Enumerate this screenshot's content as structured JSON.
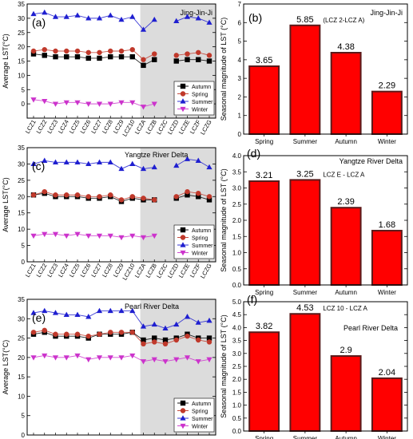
{
  "chart_data": [
    {
      "id": "a",
      "type": "line",
      "panel_label": "(a)",
      "region": "Jing-Jin-Ji",
      "ylabel": "Average LST(°C)",
      "ylim": [
        -5,
        35
      ],
      "yticks": [
        0,
        5,
        10,
        15,
        20,
        25,
        30,
        35
      ],
      "x_tick_labels": [
        "LCZ1",
        "LCZ2",
        "LCZ3",
        "LCZ4",
        "LCZ5",
        "LCZ6",
        "LCZ7",
        "LCZ8",
        "LCZ9",
        "LCZ10",
        "LCZA",
        "LCZB",
        "LCZC",
        "LCZD",
        "LCZE",
        "LCZF",
        "LCZG"
      ],
      "shaded_from_category": "LCZA",
      "legend_position": "lower-right",
      "series": [
        {
          "name": "Autumn",
          "color": "#000000",
          "marker": "square",
          "values": [
            17.5,
            17.0,
            16.5,
            16.5,
            16.5,
            16.0,
            16.0,
            16.5,
            16.5,
            16.5,
            13.5,
            15.5,
            null,
            15.0,
            15.5,
            15.5,
            15.0
          ]
        },
        {
          "name": "Spring",
          "color": "#c0392b",
          "marker": "circle",
          "values": [
            18.5,
            19.0,
            18.5,
            18.5,
            18.5,
            18.0,
            18.0,
            18.5,
            18.5,
            19.0,
            15.5,
            17.5,
            null,
            17.0,
            17.5,
            18.0,
            17.0
          ]
        },
        {
          "name": "Summer",
          "color": "#1f1fd0",
          "marker": "triangle-up",
          "values": [
            31.5,
            32.0,
            30.5,
            30.5,
            31.0,
            30.0,
            30.0,
            31.0,
            29.5,
            30.5,
            26.0,
            29.5,
            null,
            29.0,
            30.5,
            30.0,
            28.5
          ]
        },
        {
          "name": "Winter",
          "color": "#cc33cc",
          "marker": "triangle-down",
          "values": [
            1.5,
            1.0,
            0.0,
            0.5,
            0.5,
            0.0,
            0.0,
            0.0,
            0.5,
            0.5,
            -1.0,
            0.0,
            null,
            -0.5,
            -0.5,
            -0.5,
            0.0
          ]
        }
      ]
    },
    {
      "id": "b",
      "type": "bar",
      "panel_label": "(b)",
      "region": "Jing-Jin-Ji",
      "ylabel": "Seasonal magnitude of LST (°C)",
      "ylim": [
        0,
        7
      ],
      "yticks": [
        0,
        1,
        2,
        3,
        4,
        5,
        6,
        7
      ],
      "categories": [
        "Spring",
        "Summer",
        "Autumn",
        "Winter"
      ],
      "values": [
        3.65,
        5.85,
        4.38,
        2.29
      ],
      "value_labels": [
        "3.65",
        "5.85",
        "4.38",
        "2.29"
      ],
      "annotation": "(LCZ 2-LCZ A)",
      "annotation_bar": "Summer"
    },
    {
      "id": "c",
      "type": "line",
      "panel_label": "(c)",
      "region": "Yangtze River Delta",
      "ylabel": "Average LST(°C)",
      "ylim": [
        0,
        35
      ],
      "yticks": [
        0,
        5,
        10,
        15,
        20,
        25,
        30,
        35
      ],
      "x_tick_labels": [
        "LCZ1",
        "LCZ2",
        "LCZ3",
        "LCZ4",
        "LCZ5",
        "LCZ6",
        "LCZ7",
        "LCZ8",
        "LCZ9",
        "LCZ10",
        "LCZA",
        "LCZB",
        "LCZC",
        "LCZD",
        "LCZE",
        "LCZF",
        "LCZG"
      ],
      "shaded_from_category": "LCZA",
      "legend_position": "lower-right",
      "series": [
        {
          "name": "Autumn",
          "color": "#000000",
          "marker": "square",
          "values": [
            20.5,
            21.0,
            20.0,
            20.0,
            20.0,
            19.5,
            19.5,
            20.0,
            18.5,
            19.5,
            19.0,
            19.0,
            null,
            19.5,
            20.5,
            20.0,
            19.0
          ]
        },
        {
          "name": "Spring",
          "color": "#c0392b",
          "marker": "circle",
          "values": [
            20.5,
            21.5,
            20.5,
            20.5,
            20.5,
            20.0,
            20.0,
            20.5,
            19.0,
            20.0,
            19.5,
            19.0,
            null,
            20.0,
            21.5,
            21.0,
            20.0
          ]
        },
        {
          "name": "Summer",
          "color": "#1f1fd0",
          "marker": "triangle-up",
          "values": [
            30.0,
            31.0,
            30.5,
            30.5,
            30.5,
            30.0,
            30.5,
            30.5,
            28.5,
            30.0,
            28.5,
            29.0,
            null,
            29.5,
            31.5,
            31.0,
            29.0
          ]
        },
        {
          "name": "Winter",
          "color": "#cc33cc",
          "marker": "triangle-down",
          "values": [
            8.0,
            8.5,
            8.5,
            8.0,
            8.5,
            8.0,
            8.0,
            8.0,
            7.5,
            8.0,
            7.5,
            8.0,
            null,
            8.0,
            9.0,
            8.5,
            8.0
          ]
        }
      ]
    },
    {
      "id": "d",
      "type": "bar",
      "panel_label": "(d)",
      "region": "Yangtze River Delta",
      "ylabel": "Seasonal magnitude of LST (°C)",
      "ylim": [
        0,
        4
      ],
      "yticks": [
        0.0,
        0.5,
        1.0,
        1.5,
        2.0,
        2.5,
        3.0,
        3.5,
        4.0
      ],
      "categories": [
        "Spring",
        "Summer",
        "Autumn",
        "Winter"
      ],
      "values": [
        3.21,
        3.25,
        2.39,
        1.68
      ],
      "value_labels": [
        "3.21",
        "3.25",
        "2.39",
        "1.68"
      ],
      "annotation": "LCZ E - LCZ A",
      "annotation_bar": "Summer"
    },
    {
      "id": "e",
      "type": "line",
      "panel_label": "(e)",
      "region": "Pearl River Delta",
      "ylabel": "Average LST(°C)",
      "ylim": [
        0,
        35
      ],
      "yticks": [
        0,
        5,
        10,
        15,
        20,
        25,
        30,
        35
      ],
      "x_tick_labels": [
        "LCZ1",
        "LCZ2",
        "LCZ3",
        "LCZ4",
        "LCZ5",
        "LCZ6",
        "LCZ7",
        "LCZ8",
        "LCZ9",
        "LCZ10",
        "LCZA",
        "LCZB",
        "LCZC",
        "LCZD",
        "LCZE",
        "LCZF",
        "LCZG"
      ],
      "shaded_from_category": "LCZA",
      "legend_position": "lower-right",
      "series": [
        {
          "name": "Autumn",
          "color": "#000000",
          "marker": "square",
          "values": [
            26.0,
            26.5,
            25.5,
            25.5,
            25.5,
            25.0,
            26.0,
            26.0,
            26.0,
            26.5,
            24.5,
            25.0,
            24.5,
            25.0,
            26.0,
            25.0,
            25.0
          ]
        },
        {
          "name": "Spring",
          "color": "#c0392b",
          "marker": "circle",
          "values": [
            26.5,
            27.0,
            26.0,
            26.0,
            26.0,
            25.5,
            26.0,
            26.5,
            26.5,
            26.5,
            23.5,
            24.0,
            23.5,
            24.5,
            25.5,
            24.5,
            24.0
          ]
        },
        {
          "name": "Summer",
          "color": "#1f1fd0",
          "marker": "triangle-up",
          "values": [
            31.5,
            32.0,
            31.5,
            31.0,
            31.0,
            30.5,
            32.0,
            32.0,
            32.0,
            32.0,
            28.0,
            28.5,
            27.5,
            28.5,
            30.5,
            29.0,
            29.5
          ]
        },
        {
          "name": "Winter",
          "color": "#cc33cc",
          "marker": "triangle-down",
          "values": [
            20.0,
            20.5,
            20.0,
            20.0,
            20.5,
            19.5,
            20.0,
            20.0,
            20.0,
            20.5,
            19.0,
            19.5,
            19.0,
            19.5,
            20.0,
            19.0,
            19.5
          ]
        }
      ]
    },
    {
      "id": "f",
      "type": "bar",
      "panel_label": "(f)",
      "region": "Pearl River Delta",
      "ylabel": "Seasonal magnitude of LST (°C)",
      "ylim": [
        0,
        5
      ],
      "yticks": [
        0.0,
        0.5,
        1.0,
        1.5,
        2.0,
        2.5,
        3.0,
        3.5,
        4.0,
        4.5,
        5.0
      ],
      "categories": [
        "Spring",
        "Summer",
        "Autumn",
        "Winter"
      ],
      "values": [
        3.82,
        4.53,
        2.9,
        2.04
      ],
      "value_labels": [
        "3.82",
        "4.53",
        "2.9",
        "2.04"
      ],
      "annotation": "LCZ 10 - LCZ A",
      "annotation_bar": "Summer"
    }
  ],
  "colors": {
    "bar_fill": "#ff0000",
    "bar_edge": "#5a1a1a",
    "shade": "#dcdcdc",
    "autumn": "#000000",
    "spring": "#c0392b",
    "summer": "#1f1fd0",
    "winter": "#cc33cc"
  }
}
